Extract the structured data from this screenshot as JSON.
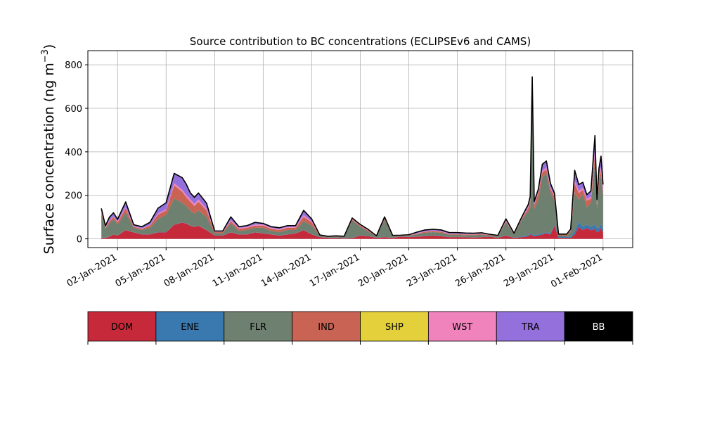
{
  "chart_data": {
    "type": "area",
    "stacked": true,
    "title": "Source contribution to BC concentrations (ECLIPSEv6 and CAMS)",
    "ylabel": "Surface concentration (ng m",
    "ylabel_sup": "−3",
    "ylabel_close": ")",
    "xlabel": "",
    "ylim": [
      -40,
      865
    ],
    "y_ticks": [
      0,
      200,
      400,
      600,
      800
    ],
    "y_tick_labels": [
      "0",
      "200",
      "400",
      "600",
      "800"
    ],
    "x_range_days": [
      "2020-12-31T04:00",
      "2021-02-02T20:00"
    ],
    "x_ticks": [
      "2021-01-02",
      "2021-01-05",
      "2021-01-08",
      "2021-01-11",
      "2021-01-14",
      "2021-01-17",
      "2021-01-20",
      "2021-01-23",
      "2021-01-26",
      "2021-01-29",
      "2021-02-01"
    ],
    "x_tick_labels": [
      "02-Jan-2021",
      "05-Jan-2021",
      "08-Jan-2021",
      "11-Jan-2021",
      "14-Jan-2021",
      "17-Jan-2021",
      "20-Jan-2021",
      "23-Jan-2021",
      "26-Jan-2021",
      "29-Jan-2021",
      "01-Feb-2021"
    ],
    "grid": true,
    "x": [
      "2021-01-01T00:00",
      "2021-01-01T06:00",
      "2021-01-01T12:00",
      "2021-01-01T18:00",
      "2021-01-02T00:00",
      "2021-01-02T12:00",
      "2021-01-03T00:00",
      "2021-01-03T12:00",
      "2021-01-04T00:00",
      "2021-01-04T12:00",
      "2021-01-05T00:00",
      "2021-01-05T12:00",
      "2021-01-06T00:00",
      "2021-01-06T06:00",
      "2021-01-06T12:00",
      "2021-01-06T18:00",
      "2021-01-07T00:00",
      "2021-01-07T12:00",
      "2021-01-08T00:00",
      "2021-01-08T12:00",
      "2021-01-09T00:00",
      "2021-01-09T12:00",
      "2021-01-10T00:00",
      "2021-01-10T12:00",
      "2021-01-11T00:00",
      "2021-01-11T12:00",
      "2021-01-12T00:00",
      "2021-01-12T12:00",
      "2021-01-13T00:00",
      "2021-01-13T12:00",
      "2021-01-14T00:00",
      "2021-01-14T12:00",
      "2021-01-15T00:00",
      "2021-01-15T12:00",
      "2021-01-16T00:00",
      "2021-01-16T12:00",
      "2021-01-17T00:00",
      "2021-01-17T12:00",
      "2021-01-18T00:00",
      "2021-01-18T12:00",
      "2021-01-19T00:00",
      "2021-01-19T12:00",
      "2021-01-20T00:00",
      "2021-01-20T12:00",
      "2021-01-21T00:00",
      "2021-01-21T12:00",
      "2021-01-22T00:00",
      "2021-01-22T12:00",
      "2021-01-23T00:00",
      "2021-01-23T12:00",
      "2021-01-24T00:00",
      "2021-01-24T12:00",
      "2021-01-25T00:00",
      "2021-01-25T12:00",
      "2021-01-26T00:00",
      "2021-01-26T12:00",
      "2021-01-27T00:00",
      "2021-01-27T06:00",
      "2021-01-27T09:00",
      "2021-01-27T12:00",
      "2021-01-27T15:00",
      "2021-01-27T18:00",
      "2021-01-28T00:00",
      "2021-01-28T06:00",
      "2021-01-28T12:00",
      "2021-01-28T18:00",
      "2021-01-29T00:00",
      "2021-01-29T06:00",
      "2021-01-29T12:00",
      "2021-01-29T18:00",
      "2021-01-30T00:00",
      "2021-01-30T06:00",
      "2021-01-30T12:00",
      "2021-01-30T18:00",
      "2021-01-31T00:00",
      "2021-01-31T06:00",
      "2021-01-31T12:00",
      "2021-01-31T15:00",
      "2021-01-31T18:00",
      "2021-01-31T21:00",
      "2021-02-01T00:00"
    ],
    "series": [
      {
        "name": "DOM",
        "color": "#c62a3a",
        "values": [
          5,
          5,
          10,
          20,
          15,
          40,
          30,
          20,
          20,
          30,
          30,
          65,
          75,
          70,
          60,
          55,
          60,
          40,
          15,
          15,
          30,
          20,
          20,
          30,
          25,
          20,
          15,
          20,
          25,
          40,
          20,
          8,
          5,
          5,
          3,
          4,
          15,
          12,
          5,
          8,
          5,
          10,
          8,
          10,
          12,
          15,
          12,
          8,
          8,
          8,
          6,
          8,
          10,
          5,
          15,
          5,
          8,
          10,
          12,
          20,
          15,
          12,
          15,
          20,
          25,
          20,
          60,
          5,
          5,
          5,
          5,
          20,
          55,
          40,
          50,
          40,
          45,
          30,
          35,
          50,
          30
        ]
      },
      {
        "name": "ENE",
        "color": "#3a78b0",
        "values": [
          1,
          1,
          1,
          1,
          1,
          1,
          1,
          1,
          1,
          1,
          1,
          1,
          1,
          1,
          1,
          1,
          1,
          1,
          1,
          1,
          1,
          1,
          1,
          1,
          1,
          1,
          1,
          1,
          1,
          1,
          1,
          1,
          1,
          1,
          1,
          1,
          1,
          1,
          1,
          1,
          1,
          1,
          1,
          1,
          1,
          1,
          1,
          1,
          1,
          1,
          1,
          1,
          1,
          1,
          1,
          1,
          3,
          5,
          5,
          5,
          5,
          5,
          5,
          5,
          5,
          5,
          5,
          5,
          5,
          5,
          3,
          15,
          25,
          15,
          15,
          15,
          20,
          20,
          15,
          20,
          15
        ]
      },
      {
        "name": "FLR",
        "color": "#6e8070",
        "values": [
          110,
          40,
          60,
          70,
          50,
          80,
          20,
          20,
          30,
          60,
          80,
          120,
          90,
          80,
          70,
          60,
          70,
          60,
          10,
          10,
          40,
          15,
          20,
          20,
          25,
          15,
          15,
          20,
          15,
          40,
          40,
          5,
          3,
          5,
          5,
          80,
          40,
          20,
          5,
          80,
          5,
          3,
          5,
          10,
          15,
          15,
          15,
          10,
          10,
          8,
          10,
          10,
          5,
          5,
          60,
          15,
          80,
          100,
          110,
          120,
          640,
          120,
          160,
          260,
          270,
          190,
          110,
          5,
          5,
          5,
          25,
          180,
          100,
          150,
          80,
          110,
          280,
          90,
          200,
          220,
          150
        ]
      },
      {
        "name": "IND",
        "color": "#c96353",
        "values": [
          10,
          5,
          10,
          10,
          10,
          20,
          5,
          5,
          10,
          20,
          20,
          60,
          50,
          40,
          40,
          35,
          40,
          30,
          5,
          5,
          10,
          10,
          10,
          10,
          10,
          10,
          10,
          10,
          10,
          20,
          15,
          2,
          1,
          1,
          1,
          5,
          5,
          5,
          1,
          5,
          2,
          1,
          2,
          3,
          5,
          5,
          5,
          3,
          3,
          3,
          3,
          3,
          2,
          2,
          5,
          2,
          5,
          10,
          15,
          30,
          40,
          20,
          30,
          20,
          20,
          15,
          20,
          5,
          5,
          5,
          5,
          40,
          30,
          20,
          30,
          20,
          40,
          15,
          30,
          20,
          20
        ]
      },
      {
        "name": "SHP",
        "color": "#e3d03a",
        "values": [
          0,
          0,
          0,
          0,
          0,
          0,
          0,
          0,
          0,
          0,
          0,
          0,
          0,
          0,
          0,
          0,
          0,
          0,
          0,
          0,
          0,
          0,
          0,
          0,
          0,
          0,
          0,
          0,
          0,
          0,
          0,
          0,
          0,
          0,
          0,
          0,
          0,
          0,
          0,
          0,
          0,
          0,
          0,
          0,
          0,
          0,
          0,
          0,
          0,
          0,
          0,
          0,
          0,
          0,
          0,
          0,
          0,
          0,
          0,
          0,
          0,
          0,
          0,
          0,
          0,
          0,
          0,
          0,
          0,
          0,
          0,
          0,
          0,
          0,
          0,
          0,
          0,
          0,
          0,
          0,
          0
        ]
      },
      {
        "name": "WST",
        "color": "#f183bc",
        "values": [
          3,
          2,
          3,
          3,
          3,
          5,
          2,
          2,
          3,
          5,
          5,
          10,
          10,
          10,
          10,
          10,
          10,
          8,
          2,
          2,
          5,
          4,
          4,
          5,
          5,
          4,
          4,
          4,
          4,
          8,
          5,
          1,
          1,
          1,
          1,
          2,
          2,
          2,
          1,
          2,
          1,
          1,
          1,
          2,
          2,
          2,
          2,
          2,
          2,
          2,
          2,
          2,
          1,
          1,
          3,
          1,
          3,
          5,
          5,
          8,
          15,
          5,
          8,
          8,
          8,
          5,
          5,
          1,
          1,
          1,
          2,
          15,
          10,
          10,
          8,
          10,
          25,
          10,
          15,
          20,
          10
        ]
      },
      {
        "name": "TRA",
        "color": "#9370db",
        "values": [
          11,
          7,
          16,
          16,
          11,
          24,
          7,
          8,
          12,
          25,
          30,
          45,
          55,
          50,
          30,
          30,
          30,
          25,
          3,
          3,
          15,
          6,
          6,
          10,
          5,
          6,
          6,
          6,
          6,
          22,
          10,
          1,
          1,
          1,
          1,
          4,
          3,
          3,
          1,
          5,
          2,
          1,
          2,
          5,
          6,
          6,
          6,
          5,
          5,
          5,
          4,
          4,
          2,
          2,
          8,
          2,
          5,
          10,
          10,
          12,
          30,
          10,
          10,
          30,
          30,
          20,
          10,
          1,
          1,
          1,
          5,
          45,
          30,
          25,
          20,
          25,
          65,
          15,
          30,
          50,
          25
        ]
      },
      {
        "name": "BB",
        "color": "#000000",
        "values": [
          0,
          0,
          0,
          0,
          0,
          0,
          0,
          0,
          0,
          0,
          0,
          0,
          0,
          0,
          0,
          0,
          0,
          0,
          0,
          0,
          0,
          0,
          0,
          0,
          0,
          0,
          0,
          0,
          0,
          0,
          0,
          0,
          0,
          0,
          0,
          0,
          0,
          0,
          0,
          0,
          0,
          0,
          0,
          0,
          0,
          0,
          0,
          0,
          0,
          0,
          0,
          0,
          0,
          0,
          0,
          0,
          0,
          0,
          0,
          0,
          0,
          0,
          0,
          0,
          0,
          0,
          0,
          0,
          0,
          0,
          0,
          0,
          0,
          0,
          0,
          0,
          0,
          0,
          0,
          0,
          0
        ]
      }
    ],
    "legend": {
      "placement": "bottom",
      "items": [
        {
          "label": "DOM",
          "color": "#c62a3a",
          "text_color": "#000000"
        },
        {
          "label": "ENE",
          "color": "#3a78b0",
          "text_color": "#000000"
        },
        {
          "label": "FLR",
          "color": "#6e8070",
          "text_color": "#000000"
        },
        {
          "label": "IND",
          "color": "#c96353",
          "text_color": "#000000"
        },
        {
          "label": "SHP",
          "color": "#e3d03a",
          "text_color": "#000000"
        },
        {
          "label": "WST",
          "color": "#f183bc",
          "text_color": "#000000"
        },
        {
          "label": "TRA",
          "color": "#9370db",
          "text_color": "#000000"
        },
        {
          "label": "BB",
          "color": "#000000",
          "text_color": "#ffffff"
        }
      ]
    }
  }
}
